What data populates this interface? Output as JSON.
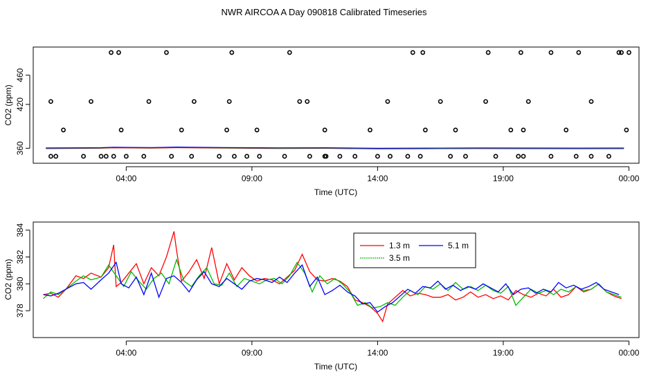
{
  "page_title": "NWR AIRCOA A  Day 090818  Calibrated Timeseries",
  "chart_data": [
    {
      "type": "scatter+line",
      "title": "",
      "xlabel": "Time (UTC)",
      "ylabel": "CO2 (ppm)",
      "xlim": [
        0.3,
        24.4
      ],
      "ylim": [
        339.5,
        498.5
      ],
      "xticks": [
        4,
        9,
        14,
        19,
        24
      ],
      "xtick_labels": [
        "04:00",
        "09:00",
        "14:00",
        "19:00",
        "00:00"
      ],
      "yticks": [
        360,
        420,
        460
      ],
      "ytick_labels": [
        "360",
        "420",
        "460"
      ],
      "calibration_points": {
        "name": "calibration standards",
        "x": [
          1.2,
          2.3,
          1.0,
          3.0,
          4.0,
          4.7,
          3.2,
          3.5,
          5.8,
          6.6,
          7.7,
          8.3,
          8.8,
          9.3,
          10.3,
          11.3,
          11.9,
          11.95,
          12.5,
          13.1,
          14.0,
          14.5,
          15.2,
          15.7,
          16.9,
          17.5,
          18.7,
          19.6,
          19.8,
          20.9,
          21.9,
          22.5,
          23.2,
          1.5,
          3.8,
          6.2,
          8.0,
          9.2,
          11.9,
          13.7,
          15.9,
          17.1,
          19.3,
          19.8,
          21.5,
          23.9,
          1.0,
          2.6,
          4.9,
          6.7,
          8.1,
          10.9,
          11.2,
          14.4,
          16.5,
          18.3,
          20.0,
          22.5,
          3.4,
          3.7,
          5.6,
          8.2,
          10.5,
          15.4,
          15.8,
          18.4,
          19.7,
          20.9,
          22.0,
          23.6,
          23.7,
          24.0
        ],
        "y": [
          349,
          349,
          349,
          349,
          349,
          349,
          349,
          349,
          349,
          349,
          349,
          349,
          349,
          349,
          349,
          349,
          349,
          349,
          349,
          349,
          349,
          349,
          349,
          349,
          349,
          349,
          349,
          349,
          349,
          349,
          349,
          349,
          349,
          385,
          385,
          385,
          385,
          385,
          385,
          385,
          385,
          385,
          385,
          385,
          385,
          385,
          424,
          424,
          424,
          424,
          424,
          424,
          424,
          424,
          424,
          424,
          424,
          424,
          491,
          491,
          491,
          491,
          491,
          491,
          491,
          491,
          491,
          491,
          491,
          491,
          491,
          491
        ]
      },
      "series": [
        {
          "name": "1.3 m",
          "color": "#ff0000"
        },
        {
          "name": "3.5 m",
          "color": "#00bb00"
        },
        {
          "name": "5.1 m",
          "color": "#0000ff"
        }
      ]
    },
    {
      "type": "line",
      "title": "",
      "xlabel": "Time (UTC)",
      "ylabel": "CO2 (ppm)",
      "xlim": [
        0.3,
        24.4
      ],
      "ylim": [
        376.0,
        384.6
      ],
      "xticks": [
        4,
        9,
        14,
        19,
        24
      ],
      "xtick_labels": [
        "04:00",
        "09:00",
        "14:00",
        "19:00",
        "00:00"
      ],
      "yticks": [
        378,
        380,
        382,
        384
      ],
      "ytick_labels": [
        "378",
        "380",
        "382",
        "384"
      ],
      "legend": {
        "placement": "top-center",
        "ncol": 2
      },
      "series": [
        {
          "name": "1.3 m",
          "color": "#ff0000",
          "x": [
            0.7,
            1.0,
            1.3,
            1.6,
            2.0,
            2.3,
            2.6,
            3.0,
            3.3,
            3.5,
            3.6,
            3.8,
            4.1,
            4.4,
            4.7,
            5.0,
            5.3,
            5.6,
            5.9,
            6.0,
            6.2,
            6.5,
            6.8,
            7.1,
            7.4,
            7.7,
            8.0,
            8.3,
            8.6,
            8.9,
            9.2,
            9.5,
            9.8,
            10.1,
            10.4,
            10.7,
            11.0,
            11.3,
            11.6,
            11.9,
            12.2,
            12.5,
            12.8,
            13.1,
            13.4,
            13.7,
            14.0,
            14.2,
            14.4,
            14.7,
            15.0,
            15.3,
            15.6,
            15.9,
            16.2,
            16.5,
            16.8,
            17.1,
            17.4,
            17.7,
            18.0,
            18.3,
            18.6,
            18.9,
            19.2,
            19.5,
            19.8,
            20.1,
            20.4,
            20.7,
            21.0,
            21.3,
            21.6,
            21.9,
            22.2,
            22.5,
            22.8,
            23.1,
            23.4,
            23.7
          ],
          "y": [
            379.2,
            379.3,
            379.0,
            379.6,
            380.6,
            380.4,
            380.8,
            380.5,
            381.2,
            382.9,
            379.8,
            380.1,
            380.8,
            381.5,
            380.0,
            381.2,
            380.6,
            382.0,
            383.9,
            382.5,
            380.2,
            380.9,
            381.8,
            380.4,
            382.7,
            380.0,
            381.5,
            380.3,
            381.2,
            380.6,
            380.2,
            380.4,
            380.3,
            380.0,
            380.5,
            381.0,
            382.2,
            380.9,
            380.3,
            380.2,
            380.4,
            380.2,
            379.8,
            378.8,
            378.6,
            378.3,
            377.8,
            377.2,
            378.5,
            379.0,
            379.5,
            379.1,
            379.3,
            379.2,
            379.0,
            379.0,
            379.2,
            378.8,
            379.0,
            379.4,
            379.0,
            379.2,
            378.9,
            379.1,
            378.8,
            379.5,
            379.2,
            379.0,
            379.3,
            379.1,
            379.6,
            379.0,
            379.2,
            379.8,
            379.4,
            379.6,
            380.0,
            379.4,
            379.1,
            378.9
          ]
        },
        {
          "name": "3.5 m",
          "color": "#00bb00",
          "x": [
            0.7,
            1.0,
            1.3,
            1.6,
            2.0,
            2.3,
            2.6,
            3.0,
            3.3,
            3.6,
            3.9,
            4.2,
            4.5,
            4.8,
            5.1,
            5.4,
            5.7,
            6.0,
            6.3,
            6.6,
            6.9,
            7.2,
            7.5,
            7.8,
            8.1,
            8.4,
            8.7,
            9.0,
            9.3,
            9.6,
            9.9,
            10.2,
            10.5,
            10.8,
            11.1,
            11.4,
            11.7,
            12.0,
            12.3,
            12.6,
            12.9,
            13.2,
            13.5,
            13.8,
            14.1,
            14.4,
            14.7,
            15.0,
            15.3,
            15.6,
            15.9,
            16.2,
            16.5,
            16.8,
            17.1,
            17.4,
            17.7,
            18.0,
            18.3,
            18.6,
            18.9,
            19.2,
            19.5,
            19.8,
            20.1,
            20.4,
            20.7,
            21.0,
            21.3,
            21.6,
            21.9,
            22.2,
            22.5,
            22.8,
            23.1,
            23.4,
            23.7
          ],
          "y": [
            378.9,
            379.4,
            379.2,
            379.6,
            380.2,
            380.6,
            380.3,
            380.5,
            381.4,
            380.6,
            379.8,
            380.9,
            380.2,
            379.6,
            380.4,
            380.8,
            380.0,
            381.8,
            380.2,
            379.8,
            380.6,
            381.2,
            380.0,
            379.9,
            380.8,
            379.8,
            380.4,
            380.2,
            380.0,
            380.3,
            380.4,
            380.0,
            380.6,
            381.6,
            380.8,
            379.4,
            380.6,
            380.0,
            380.4,
            380.0,
            379.4,
            378.4,
            378.6,
            378.2,
            378.3,
            378.6,
            378.4,
            379.0,
            379.5,
            379.2,
            379.8,
            379.6,
            380.0,
            379.5,
            380.1,
            379.6,
            379.8,
            379.5,
            379.9,
            379.5,
            379.3,
            379.8,
            378.4,
            379.0,
            379.6,
            379.3,
            379.5,
            379.2,
            379.6,
            379.4,
            379.8,
            379.5,
            379.6,
            380.0,
            379.4,
            379.2,
            379.0
          ]
        },
        {
          "name": "5.1 m",
          "color": "#0000ff",
          "x": [
            0.7,
            1.0,
            1.3,
            1.6,
            2.0,
            2.3,
            2.6,
            3.0,
            3.3,
            3.6,
            3.8,
            4.1,
            4.4,
            4.7,
            5.0,
            5.3,
            5.6,
            5.9,
            6.2,
            6.5,
            6.8,
            7.1,
            7.4,
            7.7,
            8.0,
            8.3,
            8.6,
            8.9,
            9.2,
            9.5,
            9.8,
            10.1,
            10.4,
            10.7,
            11.0,
            11.3,
            11.6,
            11.9,
            12.2,
            12.5,
            12.8,
            13.1,
            13.4,
            13.7,
            14.0,
            14.3,
            14.6,
            14.9,
            15.2,
            15.5,
            15.8,
            16.1,
            16.4,
            16.7,
            17.0,
            17.3,
            17.6,
            17.9,
            18.2,
            18.5,
            18.8,
            19.1,
            19.4,
            19.7,
            20.0,
            20.3,
            20.6,
            20.9,
            21.2,
            21.5,
            21.8,
            22.1,
            22.4,
            22.7,
            23.0,
            23.3,
            23.6
          ],
          "y": [
            379.2,
            379.1,
            379.3,
            379.6,
            380.0,
            380.1,
            379.6,
            380.3,
            380.8,
            381.6,
            380.0,
            379.7,
            380.5,
            379.2,
            380.8,
            379.0,
            380.4,
            380.6,
            380.1,
            379.4,
            380.3,
            380.9,
            380.0,
            379.8,
            380.4,
            380.0,
            379.6,
            380.2,
            380.4,
            380.3,
            380.1,
            380.5,
            380.1,
            380.8,
            381.4,
            379.8,
            380.5,
            379.2,
            379.5,
            379.9,
            379.4,
            379.1,
            378.5,
            378.6,
            377.9,
            378.3,
            378.6,
            379.1,
            379.6,
            379.3,
            379.8,
            379.7,
            380.2,
            379.6,
            379.9,
            379.5,
            379.8,
            379.6,
            380.0,
            379.7,
            379.4,
            380.0,
            379.2,
            379.6,
            379.7,
            379.3,
            379.6,
            379.4,
            380.1,
            379.7,
            379.9,
            379.6,
            379.8,
            380.1,
            379.6,
            379.4,
            379.2
          ]
        }
      ]
    }
  ]
}
